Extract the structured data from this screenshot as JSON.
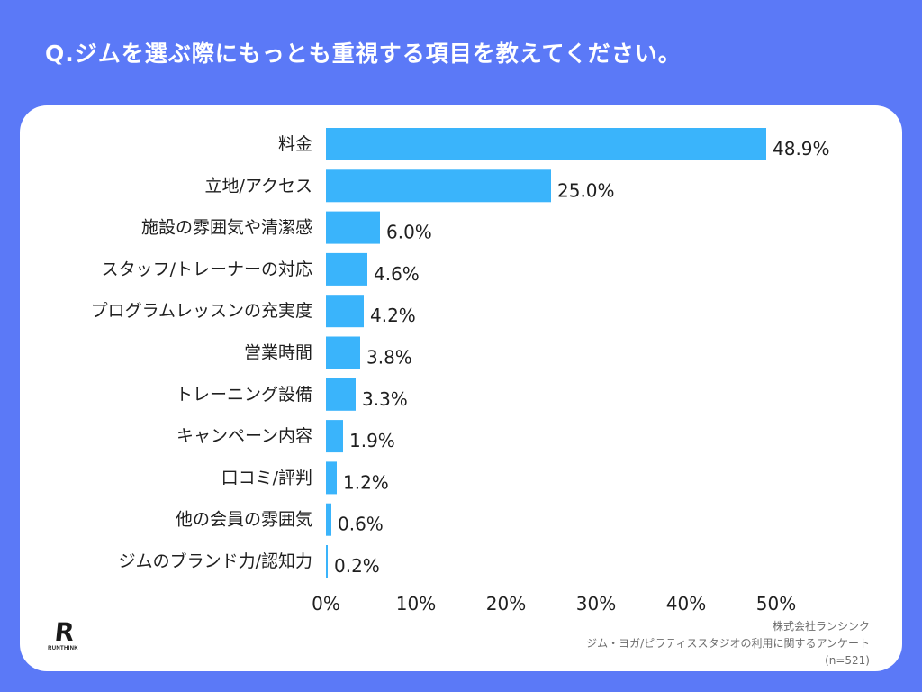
{
  "title": "Q.ジムを選ぶ際にもっとも重視する項目を教えてください。",
  "colors": {
    "background": "#5b79f7",
    "bar": "#3ab4fb",
    "card": "#ffffff"
  },
  "logo": {
    "mark": "R",
    "text": "RUNTHINK",
    "icon": "runthink-logo-icon"
  },
  "source": {
    "company": "株式会社ランシンク",
    "survey": "ジム・ヨガ/ピラティススタジオの利用に関するアンケート",
    "n": "(n=521)"
  },
  "chart_data": {
    "type": "bar",
    "orientation": "horizontal",
    "title": "Q.ジムを選ぶ際にもっとも重視する項目を教えてください。",
    "categories": [
      "料金",
      "立地/アクセス",
      "施設の雰囲気や清潔感",
      "スタッフ/トレーナーの対応",
      "プログラムレッスンの充実度",
      "営業時間",
      "トレーニング設備",
      "キャンペーン内容",
      "口コミ/評判",
      "他の会員の雰囲気",
      "ジムのブランド力/認知力"
    ],
    "values": [
      48.9,
      25.0,
      6.0,
      4.6,
      4.2,
      3.8,
      3.3,
      1.9,
      1.2,
      0.6,
      0.2
    ],
    "value_labels": [
      "48.9%",
      "25.0%",
      "6.0%",
      "4.6%",
      "4.2%",
      "3.8%",
      "3.3%",
      "1.9%",
      "1.2%",
      "0.6%",
      "0.2%"
    ],
    "xlim": [
      0,
      50
    ],
    "xticks": [
      0,
      10,
      20,
      30,
      40,
      50
    ],
    "xtick_labels": [
      "0%",
      "10%",
      "20%",
      "30%",
      "40%",
      "50%"
    ],
    "xlabel": "",
    "ylabel": "",
    "grid": false,
    "legend": "none"
  }
}
